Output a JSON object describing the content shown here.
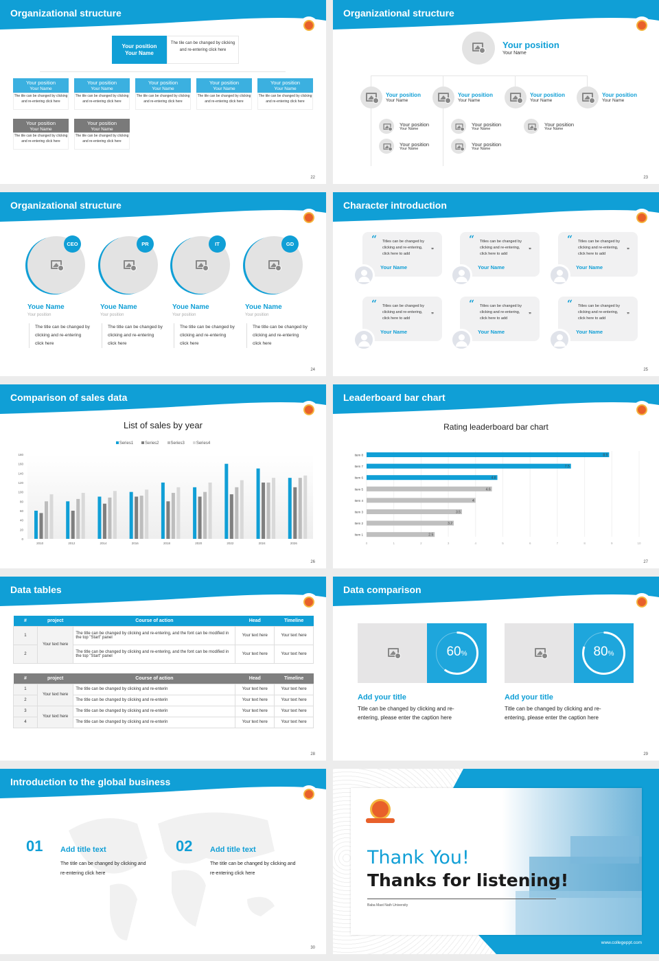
{
  "colors": {
    "accent": "#109fd6",
    "gray": "#808080",
    "light": "#c8c8c8"
  },
  "slides": [
    {
      "title": "Organizational structure",
      "page": "22",
      "top": {
        "position": "Your position",
        "name": "Your Name",
        "text": "The tile can be changed by clicking and re-entering click here"
      },
      "row1": [
        {
          "position": "Your position",
          "name": "Your Name",
          "text": "The tile can be changed by clicking and re-entering click here"
        },
        {
          "position": "Your position",
          "name": "Your Name",
          "text": "The tile can be changed by clicking and re-entering click here"
        },
        {
          "position": "Your position",
          "name": "Your Name",
          "text": "The tile can be changed by clicking and re-entering click here"
        },
        {
          "position": "Your position",
          "name": "Your Name",
          "text": "The tile can be changed by clicking and re-entering click here"
        },
        {
          "position": "Your position",
          "name": "Your Name",
          "text": "The tile can be changed by clicking and re-entering click here"
        }
      ],
      "row2": [
        {
          "position": "Your position",
          "name": "Your Name",
          "text": "The tile can be changed by clicking and re-entering click here"
        },
        {
          "position": "Your position",
          "name": "Your Name",
          "text": "The tile can be changed by clicking and re-entering click here"
        }
      ]
    },
    {
      "title": "Organizational structure",
      "page": "23",
      "top": {
        "position": "Your position",
        "name": "Your Name"
      },
      "children": [
        {
          "position": "Your position",
          "name": "Your Name"
        },
        {
          "position": "Your position",
          "name": "Your Name"
        },
        {
          "position": "Your position",
          "name": "Your Name"
        },
        {
          "position": "Your position",
          "name": "Your Name"
        }
      ],
      "subs": [
        [
          {
            "position": "Your position",
            "name": "Your Name"
          },
          {
            "position": "Your position",
            "name": "Your Name"
          }
        ],
        [
          {
            "position": "Your position",
            "name": "Your Name"
          },
          {
            "position": "Your position",
            "name": "Your Name"
          }
        ],
        [
          {
            "position": "Your position",
            "name": "Your Name"
          }
        ]
      ]
    },
    {
      "title": "Organizational structure",
      "page": "24",
      "members": [
        {
          "badge": "CEO",
          "name": "Youe Name",
          "position": "Your position",
          "text": "The title can be changed by clicking and re-entering click here"
        },
        {
          "badge": "PR",
          "name": "Youe Name",
          "position": "Your position",
          "text": "The title can be changed by clicking and re-entering click here"
        },
        {
          "badge": "IT",
          "name": "Youe Name",
          "position": "Your position",
          "text": "The title can be changed by clicking and re-entering click here"
        },
        {
          "badge": "GD",
          "name": "Youe Name",
          "position": "Your position",
          "text": "The title can be changed by clicking and re-entering click here"
        }
      ]
    },
    {
      "title": "Character introduction",
      "page": "25",
      "cards": [
        {
          "quote": "Titles can be changed by clicking and re-entering, click here to add",
          "name": "Your Name"
        },
        {
          "quote": "Titles can be changed by clicking and re-entering, click here to add",
          "name": "Your Name"
        },
        {
          "quote": "Titles can be changed by clicking and re-entering, click here to add",
          "name": "Your Name"
        },
        {
          "quote": "Titles can be changed by clicking and re-entering, click here to add",
          "name": "Your Name"
        },
        {
          "quote": "Titles can be changed by clicking and re-entering, click here to add",
          "name": "Your Name"
        },
        {
          "quote": "Titles can be changed by clicking and re-entering, click here to add",
          "name": "Your Name"
        }
      ]
    },
    {
      "title": "Comparison of sales data",
      "page": "26"
    },
    {
      "title": "Leaderboard bar chart",
      "page": "27"
    },
    {
      "title": "Data tables",
      "page": "28",
      "table1": {
        "headers": [
          "#",
          "project",
          "Course of action",
          "Head",
          "Timeline"
        ],
        "project": "Your text here",
        "rows": [
          [
            "1",
            "The title can be changed by clicking and re-entering, and the font can be modified in the top \"Start\" panel",
            "Your text here",
            "Your text here"
          ],
          [
            "2",
            "The title can be changed by clicking and re-entering, and the font can be modified in the top \"Start\" panel",
            "Your text here",
            "Your text here"
          ]
        ]
      },
      "table2": {
        "headers": [
          "#",
          "project",
          "Course of action",
          "Head",
          "Timeline"
        ],
        "projects": [
          "Your text here",
          "Your text here"
        ],
        "rows": [
          [
            "1",
            "The title can be changed by clicking and re-enterin",
            "Your text here",
            "Your text here"
          ],
          [
            "2",
            "The title can be changed by clicking and re-enterin",
            "Your text here",
            "Your text here"
          ],
          [
            "3",
            "The title can be changed by clicking and re-enterin",
            "Your text here",
            "Your text here"
          ],
          [
            "4",
            "The title can be changed by clicking and re-enterin",
            "Your text here",
            "Your text here"
          ]
        ]
      }
    },
    {
      "title": "Data comparison",
      "page": "29",
      "items": [
        {
          "percent": 60,
          "value": "60",
          "unit": "%",
          "title": "Add your title",
          "text": "Title can be changed by clicking and re-entering, please enter the caption here"
        },
        {
          "percent": 80,
          "value": "80",
          "unit": "%",
          "title": "Add your title",
          "text": "Title can be changed by clicking and re-entering, please enter the caption here"
        }
      ]
    },
    {
      "title": "Introduction to the global business",
      "page": "30",
      "items": [
        {
          "num": "01",
          "title": "Add title text",
          "text": "The title can be changed by clicking and re-entering click here"
        },
        {
          "num": "02",
          "title": "Add title text",
          "text": "The title can be changed by clicking and re-entering click here"
        }
      ]
    },
    {
      "thanks": "Thank You!",
      "listening": "Thanks for listening!",
      "university": "Baba Mast Nath University",
      "url": "www.collegeppt.com"
    }
  ],
  "chart_data": [
    {
      "type": "bar",
      "title": "List of sales by year",
      "categories": [
        "2010",
        "2012",
        "2014",
        "2016",
        "2018",
        "2020",
        "2022",
        "2024",
        "2026"
      ],
      "ylim": [
        0,
        180
      ],
      "yticks": [
        "0",
        "20",
        "40",
        "60",
        "80",
        "100",
        "120",
        "140",
        "160",
        "180"
      ],
      "legend": "top",
      "grid": false,
      "series": [
        {
          "name": "Series1",
          "color": "#109fd6",
          "values": [
            60,
            80,
            90,
            100,
            120,
            110,
            160,
            150,
            130
          ]
        },
        {
          "name": "Series2",
          "color": "#7f7f7f",
          "values": [
            55,
            60,
            75,
            90,
            80,
            90,
            95,
            120,
            110
          ]
        },
        {
          "name": "Series3",
          "color": "#bdbdbd",
          "values": [
            80,
            85,
            88,
            92,
            98,
            100,
            110,
            120,
            130
          ]
        },
        {
          "name": "Series4",
          "color": "#d9d9d9",
          "values": [
            95,
            98,
            102,
            105,
            110,
            120,
            125,
            130,
            135
          ]
        }
      ]
    },
    {
      "type": "bar",
      "orientation": "horizontal",
      "title": "Rating leaderboard bar chart",
      "categories": [
        "Item 8",
        "Item 7",
        "Item 6",
        "Item 5",
        "Item 4",
        "Item 3",
        "Item 2",
        "Item 1"
      ],
      "values": [
        8.9,
        7.5,
        4.8,
        4.6,
        4,
        3.5,
        3.2,
        2.5
      ],
      "labels": [
        "8.9",
        "7.5",
        "4.8",
        "4.6",
        "4",
        "3.5",
        "3.2",
        "2.5"
      ],
      "colors": [
        "#109fd6",
        "#109fd6",
        "#109fd6",
        "#bfbfbf",
        "#bfbfbf",
        "#bfbfbf",
        "#bfbfbf",
        "#bfbfbf"
      ],
      "xlim": [
        0,
        10
      ],
      "xticks": [
        "0",
        "1",
        "2",
        "3",
        "4",
        "5",
        "6",
        "7",
        "8",
        "9",
        "10"
      ],
      "grid": true
    }
  ]
}
